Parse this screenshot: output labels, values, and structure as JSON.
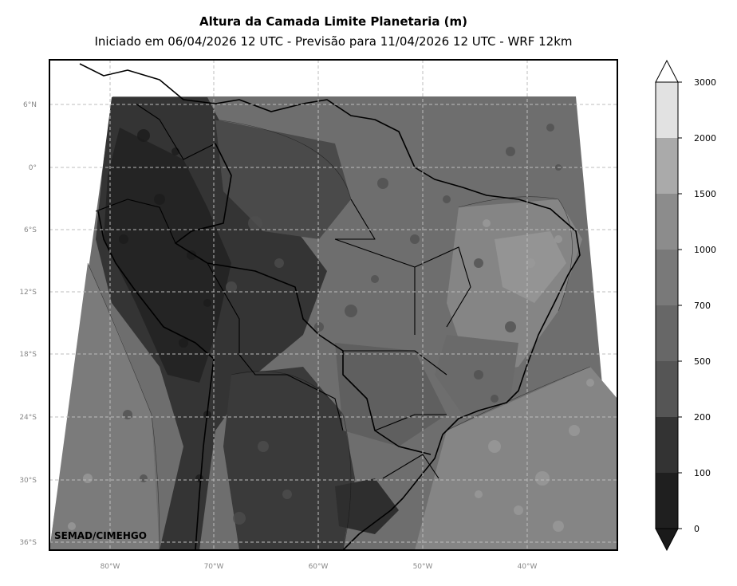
{
  "title": "Altura da Camada Limite Planetaria (m)",
  "subtitle": "Iniciado em 06/04/2026 12 UTC - Previsão para 11/04/2026 12 UTC - WRF 12km",
  "credit": "SEMAD/CIMEHGO",
  "latitude_labels": [
    "6°N",
    "0°",
    "6°S",
    "12°S",
    "18°S",
    "24°S",
    "30°S",
    "36°S"
  ],
  "longitude_labels": [
    "80°W",
    "70°W",
    "60°W",
    "50°W",
    "40°W"
  ],
  "colorbar": {
    "tick_labels": [
      "0",
      "100",
      "200",
      "500",
      "700",
      "1000",
      "1500",
      "2000",
      "3000"
    ],
    "bins": [
      {
        "color": "#1f1f1f"
      },
      {
        "color": "#333333"
      },
      {
        "color": "#555555"
      },
      {
        "color": "#676767"
      },
      {
        "color": "#797979"
      },
      {
        "color": "#8c8c8c"
      },
      {
        "color": "#aaaaaa"
      },
      {
        "color": "#e2e2e2"
      }
    ],
    "under_color": "#1a1a1a",
    "over_color": "#ffffff"
  }
}
